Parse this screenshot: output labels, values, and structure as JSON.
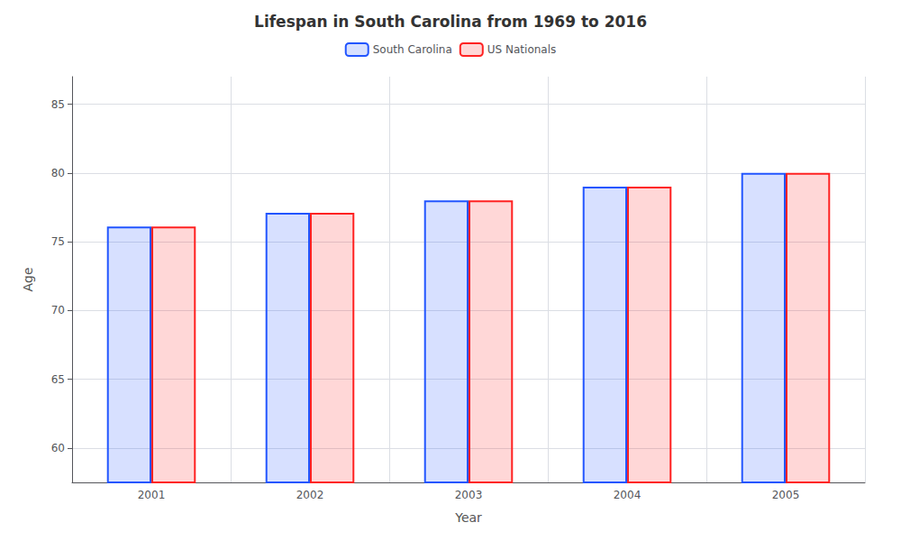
{
  "chart_data": {
    "type": "bar",
    "title": "Lifespan in South Carolina from 1969 to 2016",
    "xlabel": "Year",
    "ylabel": "Age",
    "categories": [
      "2001",
      "2002",
      "2003",
      "2004",
      "2005"
    ],
    "series": [
      {
        "name": "South Carolina",
        "color": "#2255ff",
        "values": [
          76.1,
          77.1,
          78.0,
          79.0,
          80.0
        ]
      },
      {
        "name": "US Nationals",
        "color": "#ff2222",
        "values": [
          76.1,
          77.1,
          78.0,
          79.0,
          80.0
        ]
      }
    ],
    "ylim": [
      57.5,
      87
    ],
    "yticks": [
      60,
      65,
      70,
      75,
      80,
      85
    ],
    "grid": true,
    "legend": "top"
  }
}
